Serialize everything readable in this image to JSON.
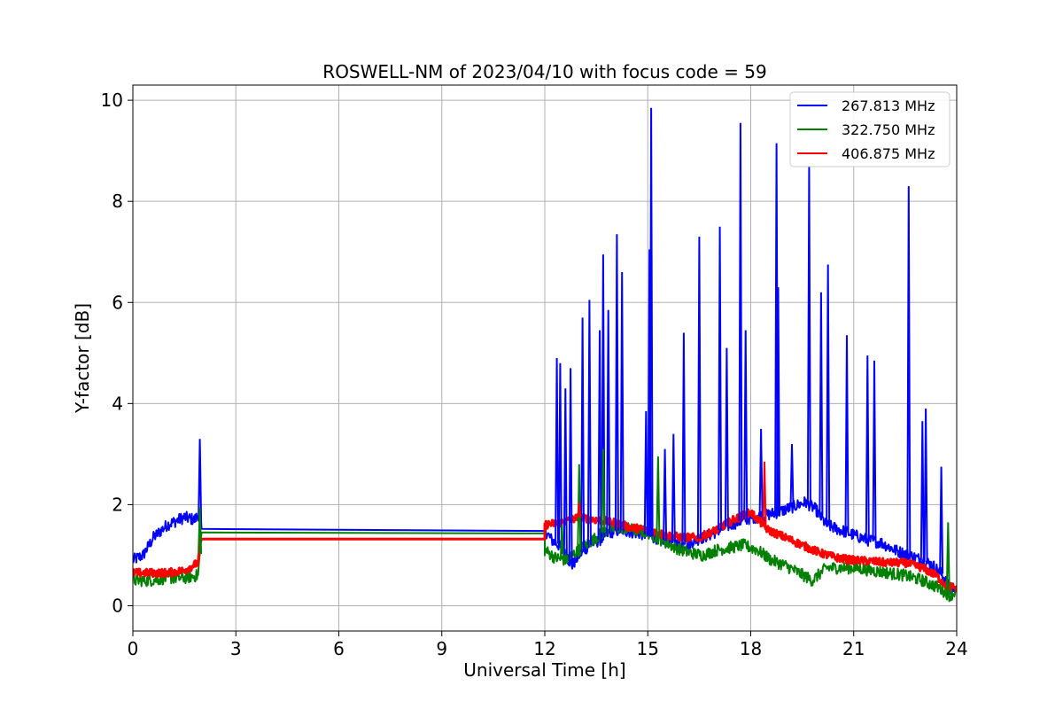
{
  "chart_data": {
    "type": "line",
    "title": "ROSWELL-NM of 2023/04/10 with focus code = 59",
    "xlabel": "Universal Time [h]",
    "ylabel": "Y-factor [dB]",
    "xlim": [
      0,
      24
    ],
    "ylim": [
      -0.5,
      10.3
    ],
    "xticks": [
      0,
      3,
      6,
      9,
      12,
      15,
      18,
      21,
      24
    ],
    "yticks": [
      0,
      2,
      4,
      6,
      8,
      10
    ],
    "grid": true,
    "legend_position": "top-right",
    "series": [
      {
        "name": "267.813 MHz",
        "color": "#0000ff",
        "x": [
          0,
          0.3,
          0.6,
          1.0,
          1.5,
          1.8,
          1.9,
          2.0,
          2.0,
          12.0,
          12.0,
          12.2,
          12.4,
          12.6,
          12.8,
          13.0,
          13.3,
          13.6,
          13.9,
          14.2,
          14.6,
          15.0,
          15.2,
          15.5,
          15.8,
          16.1,
          16.4,
          16.8,
          17.1,
          17.4,
          17.8,
          18.1,
          18.5,
          18.8,
          19.2,
          19.6,
          19.9,
          20.2,
          20.6,
          21.0,
          21.4,
          21.8,
          22.2,
          22.6,
          23.0,
          23.3,
          23.6,
          23.8,
          24.0
        ],
        "values": [
          0.9,
          1.0,
          1.35,
          1.6,
          1.75,
          1.7,
          1.8,
          1.55,
          1.52,
          1.48,
          1.5,
          1.3,
          1.2,
          1.0,
          0.8,
          1.0,
          1.2,
          1.3,
          1.45,
          1.5,
          1.45,
          1.4,
          1.35,
          1.3,
          1.25,
          1.2,
          1.3,
          1.4,
          1.5,
          1.6,
          1.7,
          1.75,
          1.8,
          1.85,
          1.95,
          2.05,
          1.9,
          1.6,
          1.5,
          1.4,
          1.3,
          1.25,
          1.1,
          1.0,
          0.9,
          0.8,
          0.6,
          0.3,
          0.4
        ]
      },
      {
        "name": "322.750 MHz",
        "color": "#008000",
        "x": [
          0,
          0.5,
          1.0,
          1.5,
          1.9,
          2.0,
          2.0,
          12.0,
          12.0,
          12.3,
          12.6,
          13.0,
          13.4,
          13.8,
          14.2,
          14.6,
          15.0,
          15.4,
          15.8,
          16.2,
          16.6,
          17.0,
          17.4,
          17.8,
          18.2,
          18.6,
          19.0,
          19.4,
          19.8,
          20.2,
          20.6,
          21.0,
          21.5,
          22.0,
          22.5,
          23.0,
          23.5,
          23.8,
          24.0
        ],
        "values": [
          0.5,
          0.5,
          0.55,
          0.55,
          0.6,
          1.45,
          1.45,
          1.43,
          1.1,
          0.95,
          0.9,
          1.1,
          1.3,
          1.5,
          1.55,
          1.5,
          1.45,
          1.3,
          1.15,
          1.05,
          1.0,
          1.1,
          1.15,
          1.2,
          1.1,
          0.9,
          0.8,
          0.65,
          0.5,
          0.75,
          0.75,
          0.75,
          0.7,
          0.65,
          0.6,
          0.5,
          0.35,
          0.2,
          0.3
        ]
      },
      {
        "name": "406.875 MHz",
        "color": "#ff0000",
        "x": [
          0,
          0.5,
          1.0,
          1.5,
          1.9,
          2.0,
          2.0,
          12.0,
          12.0,
          12.5,
          13.0,
          13.5,
          14.0,
          14.5,
          15.0,
          15.5,
          16.0,
          16.5,
          17.0,
          17.5,
          18.0,
          18.5,
          19.0,
          19.5,
          20.0,
          20.5,
          21.0,
          21.5,
          22.0,
          22.5,
          23.0,
          23.4,
          23.7,
          24.0
        ],
        "values": [
          0.65,
          0.65,
          0.65,
          0.7,
          0.85,
          1.32,
          1.32,
          1.32,
          1.6,
          1.65,
          1.75,
          1.7,
          1.65,
          1.55,
          1.5,
          1.4,
          1.35,
          1.35,
          1.5,
          1.7,
          1.85,
          1.5,
          1.35,
          1.2,
          1.05,
          0.95,
          0.9,
          0.88,
          0.85,
          0.85,
          0.75,
          0.6,
          0.4,
          0.35
        ]
      }
    ],
    "spikes": [
      {
        "series": 0,
        "x": [
          1.95,
          12.35,
          12.45,
          12.6,
          12.75,
          13.1,
          13.3,
          13.6,
          13.7,
          13.85,
          14.1,
          14.25,
          14.95,
          15.05,
          15.1,
          15.5,
          15.75,
          16.05,
          16.5,
          17.1,
          17.3,
          17.7,
          17.85,
          18.3,
          18.75,
          18.8,
          19.2,
          19.7,
          20.05,
          20.25,
          20.8,
          21.4,
          21.6,
          22.6,
          23.0,
          23.1,
          23.55
        ],
        "values": [
          3.3,
          4.9,
          4.8,
          4.3,
          4.7,
          5.7,
          6.05,
          5.45,
          6.95,
          5.85,
          7.35,
          6.6,
          3.85,
          7.05,
          9.85,
          3.1,
          3.4,
          5.4,
          7.3,
          7.5,
          5.1,
          9.55,
          5.45,
          3.5,
          9.15,
          6.3,
          3.2,
          8.7,
          6.2,
          6.75,
          5.35,
          4.95,
          4.85,
          8.3,
          3.65,
          3.9,
          2.75
        ]
      },
      {
        "series": 1,
        "x": [
          1.95,
          12.5,
          13.0,
          13.7,
          15.3,
          23.75
        ],
        "values": [
          1.95,
          1.6,
          2.8,
          3.1,
          2.95,
          1.65
        ]
      },
      {
        "series": 2,
        "x": [
          13.0,
          18.4
        ],
        "values": [
          2.05,
          2.85
        ]
      }
    ]
  }
}
